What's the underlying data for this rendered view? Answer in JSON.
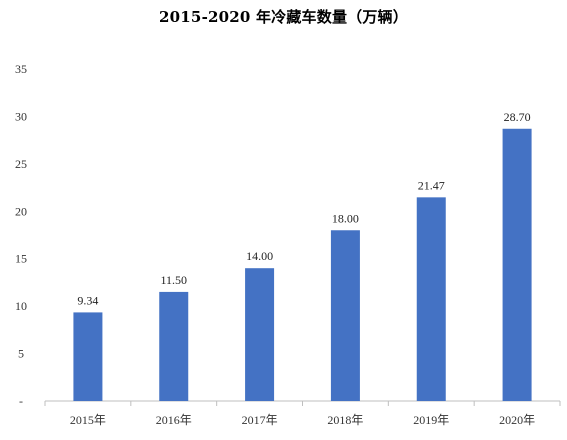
{
  "chart_data": {
    "type": "bar",
    "title": "2015-2020 年冷藏车数量（万辆）",
    "categories": [
      "2015年",
      "2016年",
      "2017年",
      "2018年",
      "2019年",
      "2020年"
    ],
    "values": [
      9.34,
      11.5,
      14.0,
      18.0,
      21.47,
      28.7
    ],
    "value_labels": [
      "9.34",
      "11.50",
      "14.00",
      "18.00",
      "21.47",
      "28.70"
    ],
    "y_ticks": [
      "-",
      "5",
      "10",
      "15",
      "20",
      "25",
      "30",
      "35"
    ],
    "ylim": [
      0,
      35
    ],
    "xlabel": "",
    "ylabel": "",
    "grid": false,
    "legend": "none",
    "bar_color": "#4472C4"
  }
}
